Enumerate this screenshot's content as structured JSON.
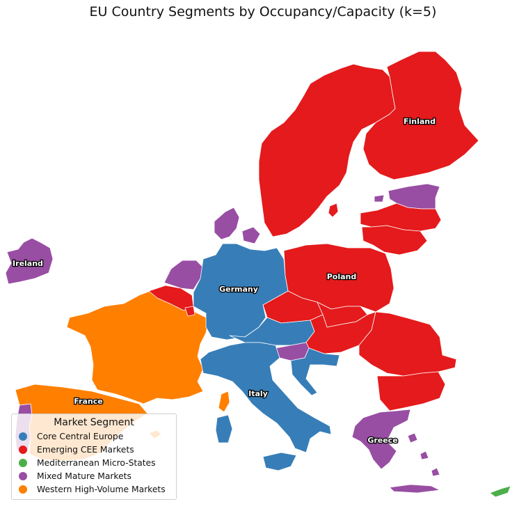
{
  "title": "EU Country Segments by Occupancy/Capacity (k=5)",
  "colors": {
    "core": "#377eb8",
    "cee": "#e41a1c",
    "micro": "#4daf4a",
    "mixed": "#984ea3",
    "western": "#ff7f00"
  },
  "legend": {
    "title": "Market Segment",
    "items": [
      {
        "label": "Core Central Europe",
        "segment": "core"
      },
      {
        "label": "Emerging CEE Markets",
        "segment": "cee"
      },
      {
        "label": "Mediterranean Micro-States",
        "segment": "micro"
      },
      {
        "label": "Mixed Mature Markets",
        "segment": "mixed"
      },
      {
        "label": "Western High-Volume Markets",
        "segment": "western"
      }
    ]
  },
  "country_labels": [
    "Finland",
    "Ireland",
    "Germany",
    "Poland",
    "France",
    "Italy",
    "Greece"
  ],
  "countries": [
    {
      "name": "Ireland",
      "segment": "mixed"
    },
    {
      "name": "Netherlands",
      "segment": "mixed"
    },
    {
      "name": "Denmark",
      "segment": "mixed"
    },
    {
      "name": "Estonia",
      "segment": "mixed"
    },
    {
      "name": "Slovenia",
      "segment": "mixed"
    },
    {
      "name": "Greece",
      "segment": "mixed"
    },
    {
      "name": "Portugal",
      "segment": "mixed"
    },
    {
      "name": "Germany",
      "segment": "core"
    },
    {
      "name": "Austria",
      "segment": "core"
    },
    {
      "name": "Italy",
      "segment": "core"
    },
    {
      "name": "Croatia",
      "segment": "core"
    },
    {
      "name": "France",
      "segment": "western"
    },
    {
      "name": "Spain",
      "segment": "western"
    },
    {
      "name": "Sweden",
      "segment": "cee"
    },
    {
      "name": "Finland",
      "segment": "cee"
    },
    {
      "name": "Latvia",
      "segment": "cee"
    },
    {
      "name": "Lithuania",
      "segment": "cee"
    },
    {
      "name": "Poland",
      "segment": "cee"
    },
    {
      "name": "Czechia",
      "segment": "cee"
    },
    {
      "name": "Slovakia",
      "segment": "cee"
    },
    {
      "name": "Hungary",
      "segment": "cee"
    },
    {
      "name": "Romania",
      "segment": "cee"
    },
    {
      "name": "Bulgaria",
      "segment": "cee"
    },
    {
      "name": "Belgium",
      "segment": "cee"
    },
    {
      "name": "Luxembourg",
      "segment": "cee"
    },
    {
      "name": "Cyprus",
      "segment": "micro"
    }
  ]
}
